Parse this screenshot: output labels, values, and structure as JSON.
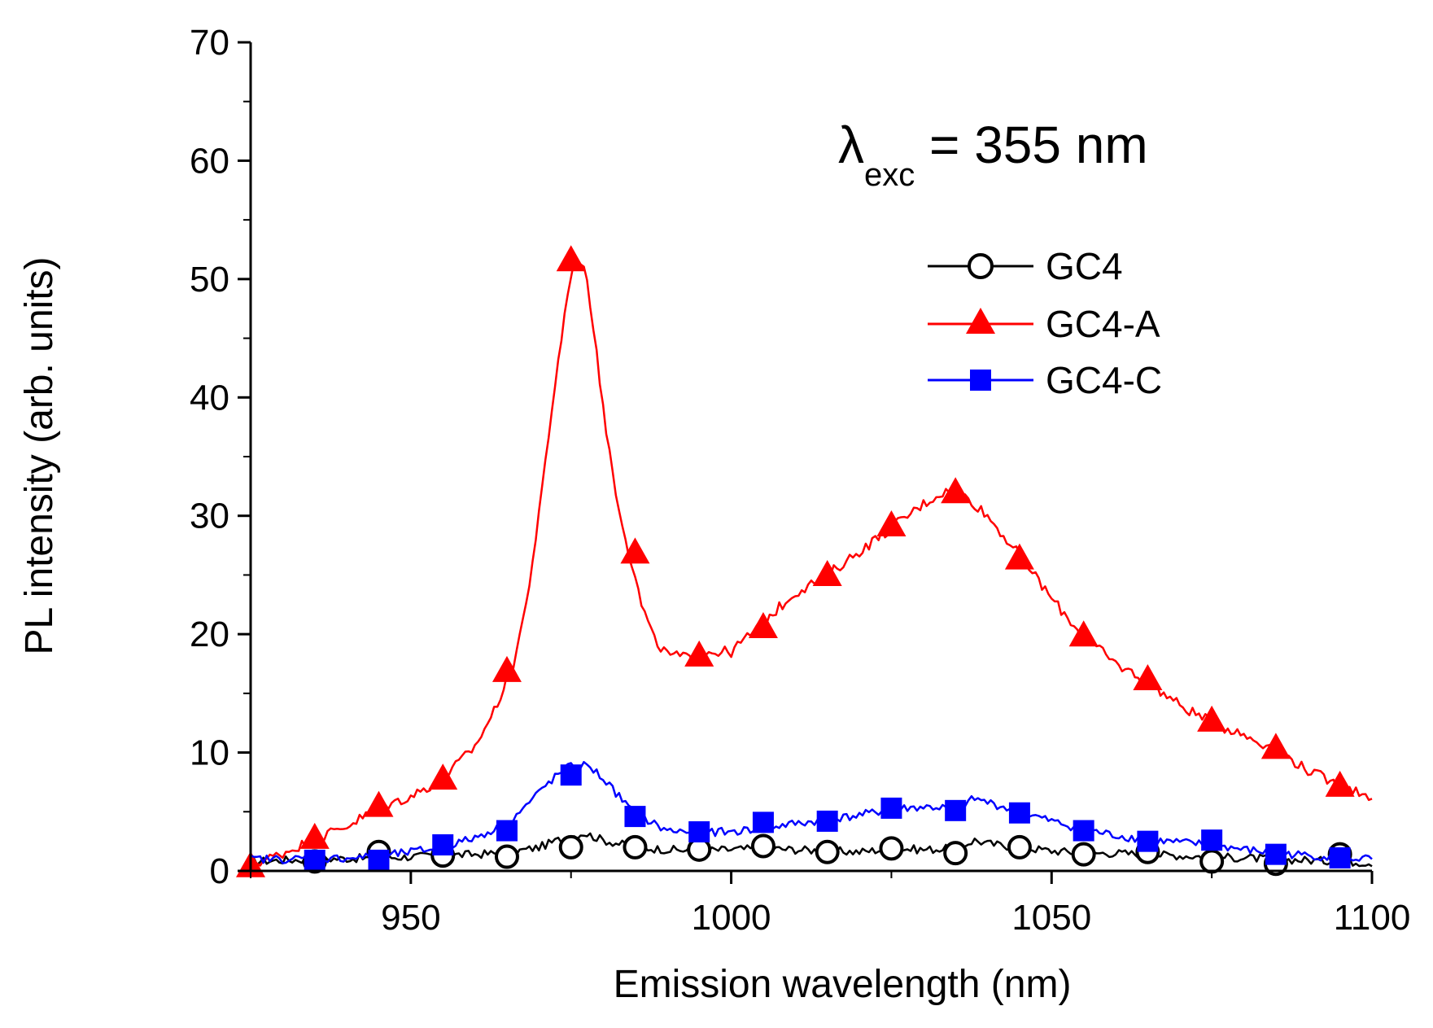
{
  "chart_data": {
    "type": "line",
    "xlabel": "Emission wavelength (nm)",
    "ylabel": "PL intensity (arb. units)",
    "xlim": [
      925,
      1100
    ],
    "ylim": [
      0,
      70
    ],
    "xticks": [
      950,
      1000,
      1050,
      1100
    ],
    "yticks": [
      0,
      10,
      20,
      30,
      40,
      50,
      60,
      70
    ],
    "xtick_labels": [
      "950",
      "1000",
      "1050",
      "1100"
    ],
    "ytick_labels": [
      "0",
      "10",
      "20",
      "30",
      "40",
      "50",
      "60",
      "70"
    ],
    "annotation": {
      "symbol": "λ",
      "subscript": "exc",
      "text": " = 355 nm"
    },
    "legend_position": "upper-right",
    "series": [
      {
        "name": "GC4",
        "color": "#000000",
        "marker": "open-circle",
        "curve_x": [
          925,
          935,
          945,
          955,
          965,
          970,
          973,
          975,
          977,
          980,
          985,
          990,
          995,
          1000,
          1005,
          1010,
          1015,
          1020,
          1025,
          1030,
          1035,
          1038,
          1040,
          1045,
          1050,
          1055,
          1060,
          1065,
          1070,
          1075,
          1080,
          1085,
          1090,
          1095,
          1100
        ],
        "curve_y": [
          0.8,
          1.0,
          1.1,
          1.3,
          1.5,
          2.0,
          2.6,
          2.9,
          3.2,
          2.6,
          2.0,
          1.8,
          1.7,
          1.8,
          1.9,
          1.8,
          1.7,
          1.6,
          1.9,
          1.8,
          1.9,
          2.6,
          2.3,
          2.0,
          1.7,
          1.5,
          1.5,
          1.4,
          1.3,
          1.2,
          1.1,
          1.0,
          0.9,
          0.8,
          0.7
        ],
        "marker_x": [
          935,
          945,
          955,
          965,
          975,
          985,
          995,
          1005,
          1015,
          1025,
          1035,
          1045,
          1055,
          1065,
          1075,
          1085,
          1095
        ],
        "marker_y": [
          0.8,
          1.6,
          1.3,
          1.2,
          2.0,
          2.0,
          1.8,
          2.1,
          1.6,
          1.9,
          1.5,
          2.0,
          1.4,
          1.6,
          0.8,
          0.6,
          1.4
        ]
      },
      {
        "name": "GC4-A",
        "color": "#ff0000",
        "marker": "filled-triangle",
        "curve_x": [
          925,
          930,
          935,
          940,
          945,
          950,
          955,
          960,
          963,
          966,
          968,
          970,
          972,
          974,
          975,
          976,
          977,
          978,
          979,
          980,
          982,
          984,
          986,
          988,
          990,
          993,
          996,
          1000,
          1005,
          1010,
          1015,
          1020,
          1025,
          1030,
          1033,
          1035,
          1037,
          1040,
          1043,
          1046,
          1050,
          1055,
          1060,
          1065,
          1070,
          1075,
          1080,
          1085,
          1090,
          1095,
          1100
        ],
        "curve_y": [
          0.5,
          1.5,
          2.7,
          3.8,
          5.3,
          6.3,
          7.8,
          10.5,
          13.5,
          17.5,
          22.5,
          30.0,
          39.0,
          47.0,
          50.5,
          52.0,
          51.0,
          48.0,
          44.0,
          39.0,
          32.0,
          27.0,
          22.5,
          19.5,
          18.3,
          18.0,
          18.5,
          18.5,
          21.0,
          23.5,
          25.0,
          27.0,
          29.0,
          31.0,
          32.0,
          32.0,
          31.5,
          30.0,
          28.0,
          26.0,
          23.0,
          19.8,
          17.5,
          16.0,
          14.0,
          12.5,
          11.5,
          10.3,
          8.5,
          7.2,
          6.3
        ],
        "marker_x": [
          925,
          935,
          945,
          955,
          965,
          975,
          985,
          995,
          1005,
          1015,
          1025,
          1035,
          1045,
          1055,
          1065,
          1075,
          1085,
          1095
        ],
        "marker_y": [
          0.3,
          2.7,
          5.4,
          7.7,
          16.8,
          51.5,
          26.8,
          18.1,
          20.5,
          24.9,
          29.1,
          31.9,
          26.3,
          19.8,
          16.1,
          12.6,
          10.3,
          7.1
        ]
      },
      {
        "name": "GC4-C",
        "color": "#0000ff",
        "marker": "filled-square",
        "curve_x": [
          925,
          935,
          945,
          955,
          960,
          965,
          968,
          971,
          974,
          976,
          978,
          980,
          982,
          985,
          990,
          995,
          1000,
          1005,
          1010,
          1015,
          1020,
          1025,
          1030,
          1035,
          1038,
          1040,
          1045,
          1050,
          1055,
          1060,
          1065,
          1070,
          1075,
          1080,
          1085,
          1090,
          1095,
          1100
        ],
        "curve_y": [
          1.0,
          1.0,
          1.2,
          2.0,
          2.8,
          4.0,
          5.5,
          7.2,
          8.6,
          9.0,
          8.8,
          7.8,
          6.6,
          4.8,
          3.4,
          3.3,
          3.3,
          3.6,
          4.0,
          4.3,
          4.7,
          5.2,
          5.4,
          5.3,
          6.1,
          5.8,
          5.0,
          4.2,
          3.5,
          3.0,
          2.6,
          2.4,
          2.2,
          1.8,
          1.5,
          1.3,
          1.1,
          1.0
        ],
        "marker_x": [
          935,
          945,
          955,
          965,
          975,
          985,
          995,
          1005,
          1015,
          1025,
          1035,
          1045,
          1055,
          1065,
          1075,
          1085,
          1095
        ],
        "marker_y": [
          0.9,
          0.9,
          2.2,
          3.4,
          8.1,
          4.6,
          3.3,
          4.1,
          4.2,
          5.3,
          5.1,
          4.9,
          3.4,
          2.5,
          2.6,
          1.4,
          1.1
        ]
      }
    ]
  }
}
